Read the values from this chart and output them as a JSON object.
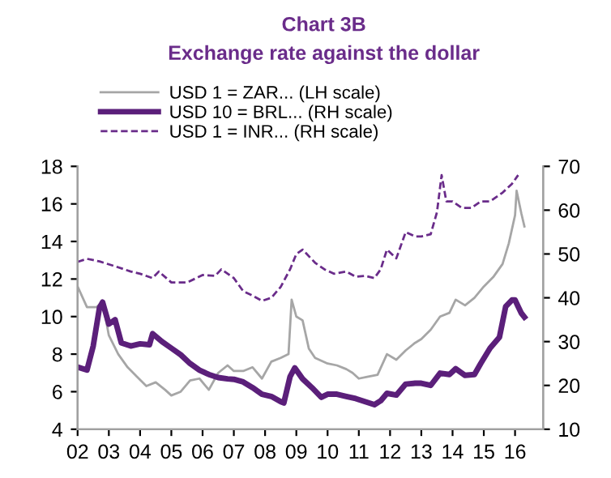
{
  "chart_data": {
    "type": "line",
    "title": "Chart 3B",
    "subtitle": "Exchange rate against the dollar",
    "xlim": [
      2002,
      2016.9
    ],
    "xticks": [
      {
        "value": 2002,
        "label": "02"
      },
      {
        "value": 2003,
        "label": "03"
      },
      {
        "value": 2004,
        "label": "04"
      },
      {
        "value": 2005,
        "label": "05"
      },
      {
        "value": 2006,
        "label": "06"
      },
      {
        "value": 2007,
        "label": "07"
      },
      {
        "value": 2008,
        "label": "08"
      },
      {
        "value": 2009,
        "label": "09"
      },
      {
        "value": 2010,
        "label": "10"
      },
      {
        "value": 2011,
        "label": "11"
      },
      {
        "value": 2012,
        "label": "12"
      },
      {
        "value": 2013,
        "label": "13"
      },
      {
        "value": 2014,
        "label": "14"
      },
      {
        "value": 2015,
        "label": "15"
      },
      {
        "value": 2016,
        "label": "16"
      }
    ],
    "ylim": [
      4,
      18
    ],
    "yticks": [
      4,
      6,
      8,
      10,
      12,
      14,
      16,
      18
    ],
    "y2lim": [
      10,
      70
    ],
    "y2ticks": [
      10,
      20,
      30,
      40,
      50,
      60,
      70
    ],
    "grid": false,
    "legend": "top",
    "marker": "none",
    "series": [
      {
        "name": "USD 1 = ZAR... (LH scale)",
        "color": "#a6a6a6",
        "line_style": "solid",
        "x": [
          2002.0,
          2002.3,
          2002.6,
          2002.8,
          2003.0,
          2003.3,
          2003.6,
          2003.9,
          2004.2,
          2004.5,
          2004.8,
          2005.0,
          2005.3,
          2005.6,
          2005.9,
          2006.2,
          2006.5,
          2006.8,
          2007.0,
          2007.3,
          2007.6,
          2007.9,
          2008.2,
          2008.5,
          2008.75,
          2008.85,
          2009.0,
          2009.2,
          2009.4,
          2009.6,
          2010.0,
          2010.3,
          2010.6,
          2010.8,
          2011.0,
          2011.3,
          2011.6,
          2011.9,
          2012.2,
          2012.5,
          2012.8,
          2013.0,
          2013.3,
          2013.6,
          2013.9,
          2014.1,
          2014.4,
          2014.7,
          2015.0,
          2015.3,
          2015.6,
          2015.8,
          2016.0,
          2016.05,
          2016.2,
          2016.3
        ],
        "values": [
          11.6,
          10.5,
          10.5,
          10.8,
          9.0,
          8.0,
          7.3,
          6.8,
          6.3,
          6.5,
          6.1,
          5.8,
          6.0,
          6.6,
          6.7,
          6.1,
          7.0,
          7.4,
          7.1,
          7.1,
          7.3,
          6.7,
          7.6,
          7.8,
          8.0,
          10.9,
          10.0,
          9.8,
          8.3,
          7.8,
          7.5,
          7.4,
          7.2,
          7.0,
          6.7,
          6.8,
          6.9,
          8.0,
          7.7,
          8.2,
          8.6,
          8.8,
          9.3,
          10.0,
          10.2,
          10.9,
          10.6,
          11.0,
          11.6,
          12.1,
          12.8,
          13.9,
          15.4,
          16.7,
          15.5,
          14.8
        ]
      },
      {
        "name": "USD 10 = BRL... (RH scale)",
        "color": "#5b1f7a",
        "axis": "y2",
        "line_style": "solid",
        "x": [
          2002.0,
          2002.3,
          2002.5,
          2002.7,
          2002.8,
          2003.0,
          2003.2,
          2003.4,
          2003.7,
          2004.0,
          2004.3,
          2004.4,
          2004.7,
          2005.0,
          2005.3,
          2005.6,
          2005.9,
          2006.2,
          2006.5,
          2006.8,
          2007.0,
          2007.3,
          2007.6,
          2007.9,
          2008.2,
          2008.5,
          2008.6,
          2008.8,
          2008.95,
          2009.2,
          2009.5,
          2009.8,
          2010.0,
          2010.3,
          2010.6,
          2010.9,
          2011.2,
          2011.5,
          2011.7,
          2011.9,
          2012.2,
          2012.5,
          2012.8,
          2013.0,
          2013.3,
          2013.6,
          2013.9,
          2014.1,
          2014.4,
          2014.7,
          2014.9,
          2015.2,
          2015.5,
          2015.7,
          2015.9,
          2016.0,
          2016.1,
          2016.2,
          2016.3
        ],
        "values": [
          24.2,
          23.5,
          29,
          37.7,
          39,
          34,
          35,
          29.7,
          29,
          29.5,
          29.3,
          31.8,
          30,
          28.5,
          27,
          25,
          23.5,
          22.5,
          21.8,
          21.5,
          21.4,
          20.8,
          19.5,
          18,
          17.5,
          16.3,
          16,
          22,
          24,
          21.5,
          19.5,
          17.3,
          18,
          18,
          17.5,
          17,
          16.3,
          15.6,
          16.5,
          18.2,
          17.8,
          20.3,
          20.5,
          20.5,
          20.0,
          22.8,
          22.5,
          23.8,
          22.3,
          22.5,
          25,
          28.5,
          31,
          38,
          39.5,
          39.5,
          38,
          36.5,
          35.6
        ]
      },
      {
        "name": "USD 1 = INR... (RH scale)",
        "color": "#6a2c8a",
        "axis": "y2",
        "line_style": "dashed",
        "x": [
          2002.0,
          2002.3,
          2002.7,
          2003.2,
          2003.7,
          2004.0,
          2004.4,
          2004.6,
          2005.0,
          2005.5,
          2005.8,
          2006.0,
          2006.4,
          2006.6,
          2007.0,
          2007.3,
          2007.6,
          2007.9,
          2008.2,
          2008.5,
          2008.8,
          2009.0,
          2009.2,
          2009.6,
          2009.9,
          2010.2,
          2010.6,
          2010.9,
          2011.2,
          2011.5,
          2011.7,
          2011.9,
          2012.2,
          2012.5,
          2012.8,
          2013.0,
          2013.3,
          2013.5,
          2013.65,
          2013.8,
          2014.0,
          2014.3,
          2014.6,
          2014.9,
          2015.2,
          2015.6,
          2015.9,
          2016.1
        ],
        "values": [
          48.2,
          48.9,
          48.3,
          47.2,
          46,
          45.5,
          44.5,
          46,
          43.5,
          43.5,
          44.5,
          45.2,
          45,
          46.5,
          44.5,
          41.5,
          40.5,
          39.3,
          40,
          42.5,
          46.5,
          50,
          51,
          48,
          46.5,
          45.5,
          46,
          44.8,
          45,
          44.5,
          46.5,
          51,
          49,
          55,
          54,
          54,
          54.5,
          59.5,
          68,
          62,
          62,
          60.5,
          60.5,
          62,
          62,
          64,
          66,
          68
        ]
      }
    ]
  }
}
